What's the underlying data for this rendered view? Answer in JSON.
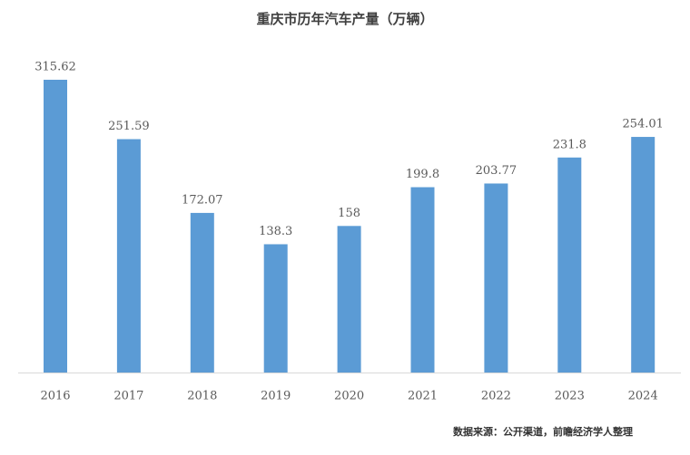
{
  "chart_data": {
    "type": "bar",
    "title": "重庆市历年汽车产量（万辆）",
    "categories": [
      "2016",
      "2017",
      "2018",
      "2019",
      "2020",
      "2021",
      "2022",
      "2023",
      "2024"
    ],
    "values": [
      315.62,
      251.59,
      172.07,
      138.3,
      158,
      199.8,
      203.77,
      231.8,
      254.01
    ],
    "color": "#5b9bd5",
    "source": "数据来源：公开渠道，前瞻经济学人整理"
  }
}
